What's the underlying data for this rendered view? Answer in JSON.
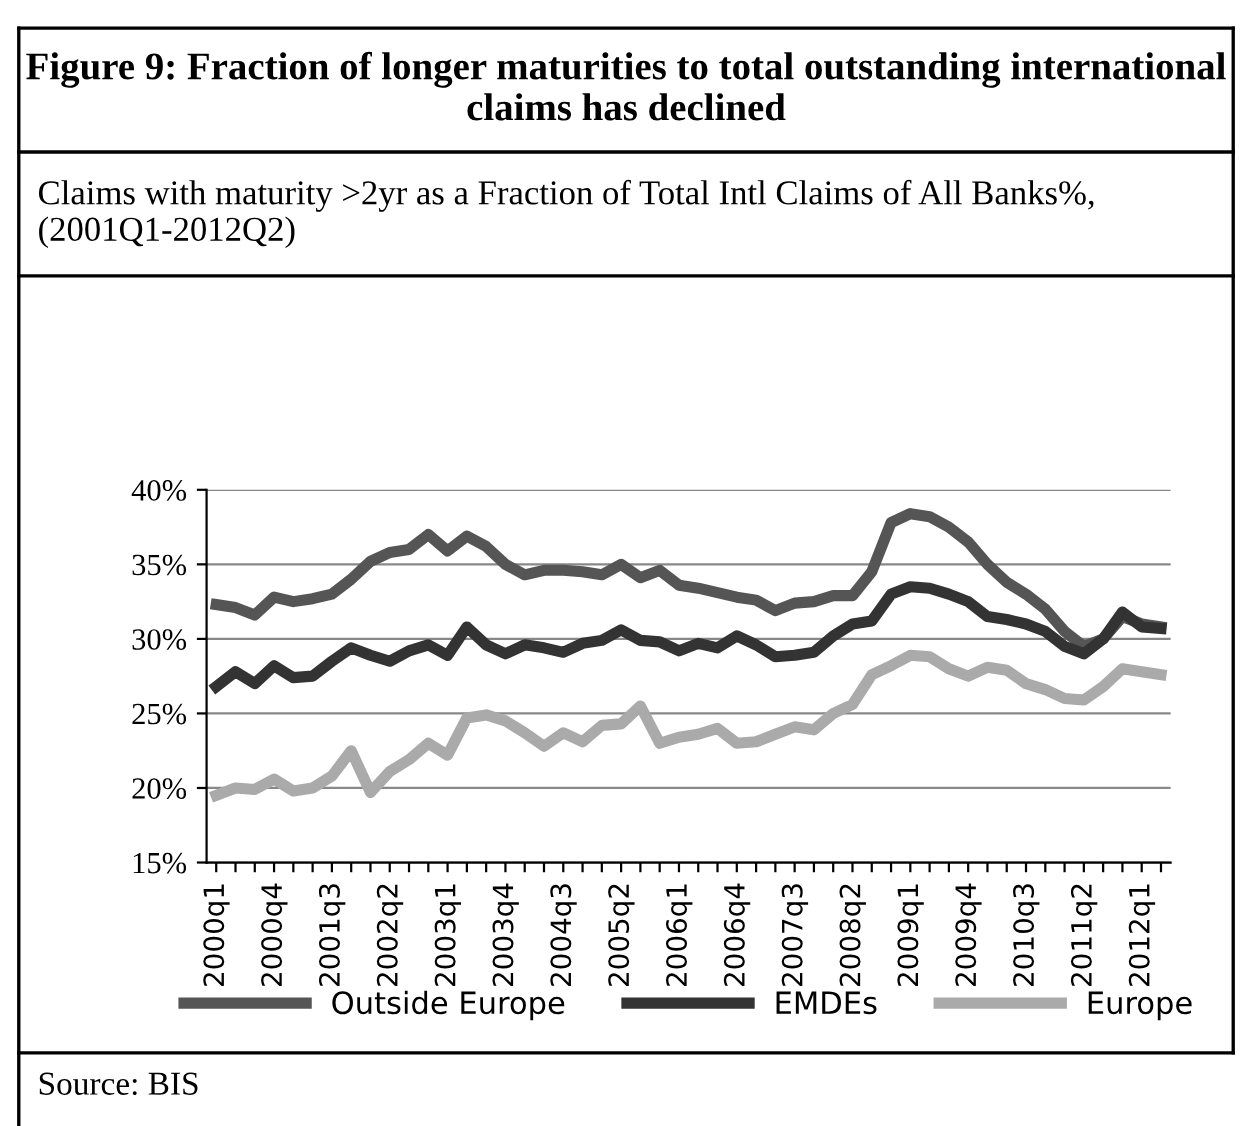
{
  "chart_data": {
    "type": "line",
    "title": "Figure 9: Fraction of longer maturities to total outstanding international claims has declined",
    "subtitle": "Claims with maturity >2yr as a Fraction of Total Intl Claims of All Banks%, (2001Q1-2012Q2)",
    "categories": [
      "2000q1",
      null,
      null,
      "2000q4",
      null,
      null,
      "2001q3",
      null,
      null,
      "2002q2",
      null,
      null,
      "2003q1",
      null,
      null,
      "2003q4",
      null,
      null,
      "2004q3",
      null,
      null,
      "2005q2",
      null,
      null,
      "2006q1",
      null,
      null,
      "2006q4",
      null,
      null,
      "2007q3",
      null,
      null,
      "2008q2",
      null,
      null,
      "2009q1",
      null,
      null,
      "2009q4",
      null,
      null,
      "2010q3",
      null,
      null,
      "2011q2",
      null,
      null,
      "2012q1",
      null
    ],
    "series": [
      {
        "name": "Outside Europe",
        "color": "#555555",
        "values": [
          32.3,
          32.1,
          31.6,
          32.8,
          32.5,
          32.7,
          33.0,
          34.0,
          35.2,
          35.8,
          36.0,
          37.0,
          35.9,
          36.9,
          36.2,
          35.0,
          34.3,
          34.6,
          34.6,
          34.5,
          34.3,
          35.0,
          34.1,
          34.6,
          33.6,
          33.4,
          33.1,
          32.8,
          32.6,
          31.9,
          32.4,
          32.5,
          32.9,
          32.9,
          34.5,
          37.8,
          38.4,
          38.2,
          37.5,
          36.5,
          35.0,
          33.8,
          33.0,
          32.0,
          30.5,
          29.5,
          30.0,
          31.5,
          31.0,
          30.8
        ]
      },
      {
        "name": "EMDEs",
        "color": "#333333",
        "values": [
          26.8,
          27.8,
          27.0,
          28.2,
          27.4,
          27.5,
          28.5,
          29.4,
          28.9,
          28.5,
          29.2,
          29.6,
          28.9,
          30.8,
          29.6,
          29.0,
          29.6,
          29.4,
          29.1,
          29.7,
          29.9,
          30.6,
          29.9,
          29.8,
          29.2,
          29.7,
          29.4,
          30.2,
          29.6,
          28.8,
          28.9,
          29.1,
          30.2,
          31.0,
          31.2,
          33.0,
          33.5,
          33.4,
          33.0,
          32.5,
          31.5,
          31.3,
          31.0,
          30.5,
          29.5,
          29.0,
          30.0,
          31.8,
          30.8,
          30.7
        ]
      },
      {
        "name": "Europe",
        "color": "#aaaaaa",
        "values": [
          19.5,
          20.0,
          19.9,
          20.6,
          19.8,
          20.0,
          20.8,
          22.5,
          19.7,
          21.1,
          21.9,
          23.0,
          22.2,
          24.7,
          24.9,
          24.5,
          23.7,
          22.8,
          23.7,
          23.1,
          24.2,
          24.3,
          25.5,
          23.0,
          23.4,
          23.6,
          24.0,
          23.0,
          23.1,
          23.6,
          24.1,
          23.9,
          25.0,
          25.6,
          27.6,
          28.2,
          28.9,
          28.8,
          28.0,
          27.5,
          28.1,
          27.9,
          27.0,
          26.6,
          26.0,
          25.9,
          26.8,
          28.0,
          27.8,
          27.6
        ]
      }
    ],
    "ylim": [
      15,
      40
    ],
    "yticks": [
      {
        "value": 15,
        "label": "15%"
      },
      {
        "value": 20,
        "label": "20%"
      },
      {
        "value": 25,
        "label": "25%"
      },
      {
        "value": 30,
        "label": "30%"
      },
      {
        "value": 35,
        "label": "35%"
      },
      {
        "value": 40,
        "label": "40%"
      }
    ],
    "grid": "y",
    "legend": "bottom",
    "marker": "none",
    "line_style": "solid",
    "annotations": [
      "Source: BIS"
    ]
  }
}
